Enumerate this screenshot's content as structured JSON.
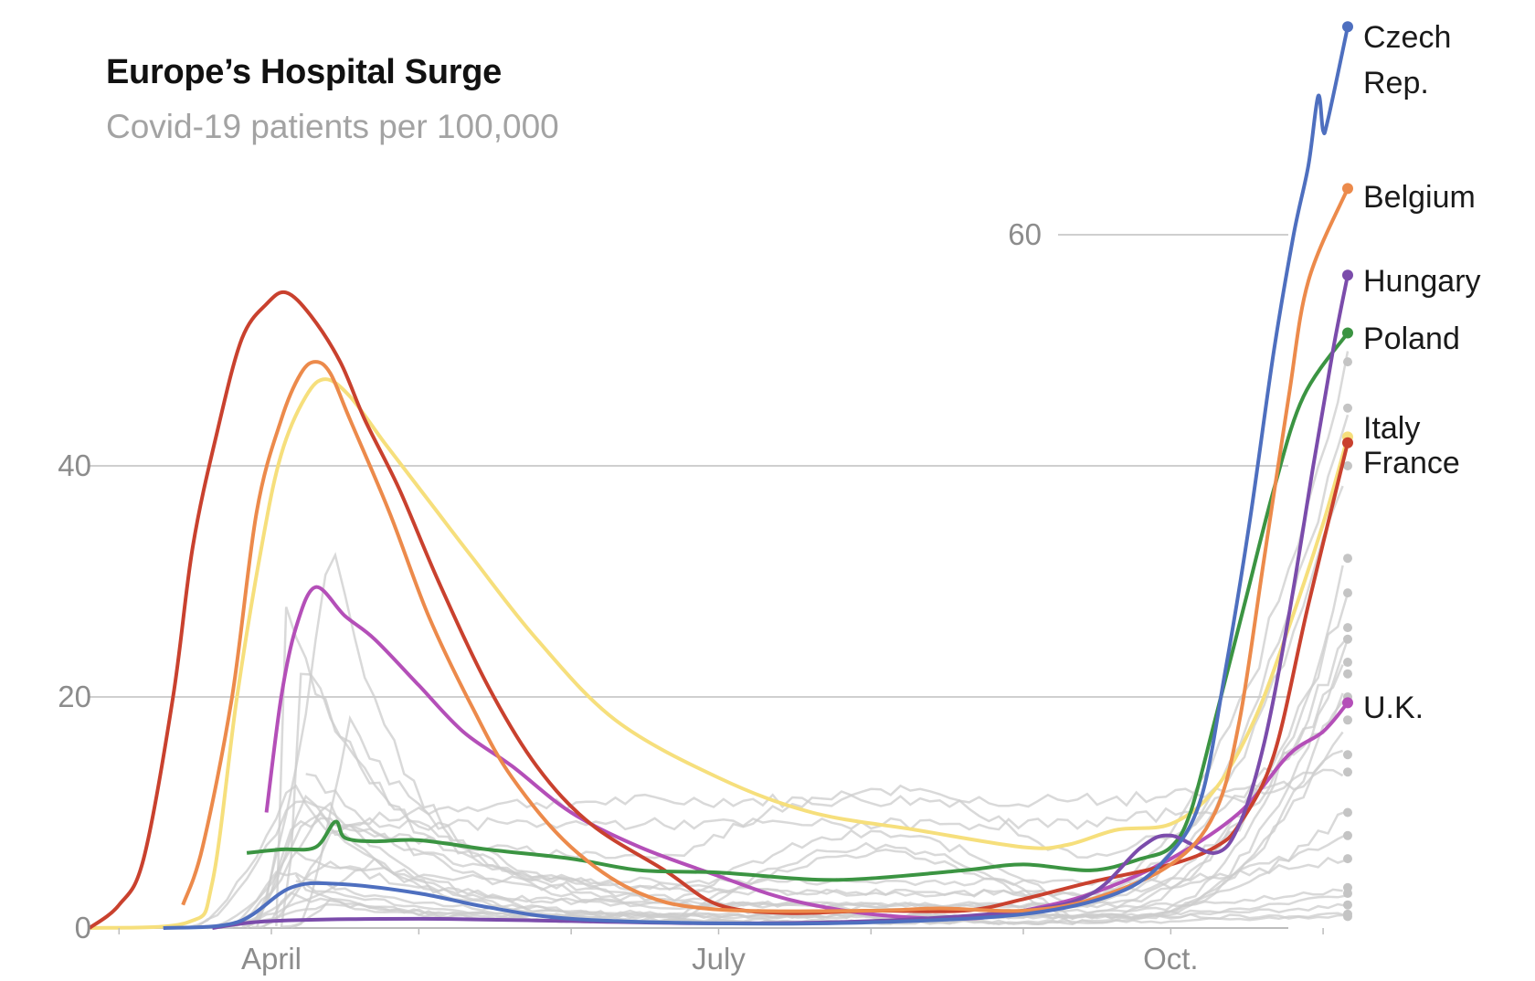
{
  "header": {
    "title": "Europe’s Hospital Surge",
    "subtitle": "Covid-19 patients per 100,000"
  },
  "chart_data": {
    "type": "line",
    "title": "Europe’s Hospital Surge",
    "subtitle": "Covid-19 patients per 100,000",
    "xlabel": "",
    "ylabel": "",
    "x_domain": [
      "2020-02-24",
      "2020-11-06"
    ],
    "ylim": [
      0,
      75
    ],
    "y_ticks": [
      0,
      20,
      40,
      60
    ],
    "x_ticks": [
      {
        "date": "2020-04-01",
        "label": "April"
      },
      {
        "date": "2020-07-01",
        "label": "July"
      },
      {
        "date": "2020-10-01",
        "label": "Oct."
      }
    ],
    "grid": true,
    "legend": "direct labels at line ends",
    "background_series_color": "#cccccc",
    "series": [
      {
        "name": "Czech Rep.",
        "label": [
          "Czech",
          "Rep."
        ],
        "color": "#4e6fbf",
        "points": [
          [
            "2020-03-10",
            0
          ],
          [
            "2020-03-25",
            0.5
          ],
          [
            "2020-04-05",
            3.5
          ],
          [
            "2020-04-15",
            3.8
          ],
          [
            "2020-05-01",
            3
          ],
          [
            "2020-05-15",
            1.8
          ],
          [
            "2020-06-01",
            0.8
          ],
          [
            "2020-07-01",
            0.4
          ],
          [
            "2020-08-01",
            0.5
          ],
          [
            "2020-09-01",
            1.2
          ],
          [
            "2020-09-20",
            3
          ],
          [
            "2020-09-30",
            6
          ],
          [
            "2020-10-07",
            11
          ],
          [
            "2020-10-12",
            22
          ],
          [
            "2020-10-17",
            35
          ],
          [
            "2020-10-22",
            50
          ],
          [
            "2020-10-26",
            60
          ],
          [
            "2020-10-29",
            66
          ],
          [
            "2020-10-31",
            72
          ],
          [
            "2020-11-01",
            69
          ],
          [
            "2020-11-02",
            70
          ],
          [
            "2020-11-06",
            78
          ]
        ]
      },
      {
        "name": "Belgium",
        "color": "#ec8a4b",
        "points": [
          [
            "2020-03-14",
            2
          ],
          [
            "2020-03-18",
            7
          ],
          [
            "2020-03-24",
            20
          ],
          [
            "2020-03-29",
            36
          ],
          [
            "2020-04-03",
            44
          ],
          [
            "2020-04-07",
            48
          ],
          [
            "2020-04-10",
            49
          ],
          [
            "2020-04-13",
            48
          ],
          [
            "2020-04-17",
            44
          ],
          [
            "2020-04-25",
            36
          ],
          [
            "2020-05-03",
            27
          ],
          [
            "2020-05-12",
            19
          ],
          [
            "2020-05-20",
            13
          ],
          [
            "2020-06-01",
            7
          ],
          [
            "2020-06-15",
            3
          ],
          [
            "2020-07-01",
            1.6
          ],
          [
            "2020-08-01",
            1.5
          ],
          [
            "2020-08-15",
            1.7
          ],
          [
            "2020-09-01",
            1.5
          ],
          [
            "2020-09-15",
            2.5
          ],
          [
            "2020-10-01",
            5.5
          ],
          [
            "2020-10-10",
            10
          ],
          [
            "2020-10-15",
            18
          ],
          [
            "2020-10-20",
            32
          ],
          [
            "2020-10-25",
            46
          ],
          [
            "2020-10-29",
            56
          ],
          [
            "2020-11-06",
            64
          ]
        ]
      },
      {
        "name": "Hungary",
        "color": "#7b4cab",
        "points": [
          [
            "2020-03-20",
            0
          ],
          [
            "2020-04-01",
            0.6
          ],
          [
            "2020-05-01",
            0.8
          ],
          [
            "2020-06-01",
            0.6
          ],
          [
            "2020-07-01",
            0.4
          ],
          [
            "2020-08-01",
            0.6
          ],
          [
            "2020-09-01",
            1.5
          ],
          [
            "2020-09-15",
            3
          ],
          [
            "2020-09-25",
            7
          ],
          [
            "2020-10-01",
            8
          ],
          [
            "2020-10-10",
            6.5
          ],
          [
            "2020-10-15",
            9
          ],
          [
            "2020-10-20",
            16
          ],
          [
            "2020-10-25",
            27
          ],
          [
            "2020-10-30",
            40
          ],
          [
            "2020-11-03",
            50
          ],
          [
            "2020-11-06",
            56.5
          ]
        ]
      },
      {
        "name": "Poland",
        "color": "#3b9442",
        "points": [
          [
            "2020-03-27",
            6.5
          ],
          [
            "2020-04-03",
            6.8
          ],
          [
            "2020-04-10",
            7
          ],
          [
            "2020-04-14",
            9.2
          ],
          [
            "2020-04-16",
            7.8
          ],
          [
            "2020-04-22",
            7.5
          ],
          [
            "2020-05-01",
            7.6
          ],
          [
            "2020-05-15",
            6.8
          ],
          [
            "2020-06-01",
            6
          ],
          [
            "2020-06-15",
            5
          ],
          [
            "2020-07-01",
            4.8
          ],
          [
            "2020-07-20",
            4.2
          ],
          [
            "2020-08-01",
            4.3
          ],
          [
            "2020-08-20",
            5
          ],
          [
            "2020-09-01",
            5.5
          ],
          [
            "2020-09-15",
            5
          ],
          [
            "2020-09-25",
            6
          ],
          [
            "2020-10-01",
            7
          ],
          [
            "2020-10-05",
            10
          ],
          [
            "2020-10-10",
            18
          ],
          [
            "2020-10-16",
            28
          ],
          [
            "2020-10-22",
            38
          ],
          [
            "2020-10-28",
            46
          ],
          [
            "2020-11-06",
            51.5
          ]
        ]
      },
      {
        "name": "Italy",
        "color": "#c9412e",
        "points": [
          [
            "2020-02-24",
            0
          ],
          [
            "2020-03-01",
            2
          ],
          [
            "2020-03-06",
            6
          ],
          [
            "2020-03-12",
            20
          ],
          [
            "2020-03-16",
            33
          ],
          [
            "2020-03-21",
            43
          ],
          [
            "2020-03-26",
            51
          ],
          [
            "2020-03-31",
            54
          ],
          [
            "2020-04-04",
            55
          ],
          [
            "2020-04-09",
            53
          ],
          [
            "2020-04-15",
            49
          ],
          [
            "2020-04-20",
            44
          ],
          [
            "2020-04-27",
            38
          ],
          [
            "2020-05-05",
            30
          ],
          [
            "2020-05-15",
            21
          ],
          [
            "2020-05-25",
            14
          ],
          [
            "2020-06-05",
            9
          ],
          [
            "2020-06-20",
            5
          ],
          [
            "2020-07-01",
            2
          ],
          [
            "2020-07-15",
            1.3
          ],
          [
            "2020-08-01",
            1.5
          ],
          [
            "2020-08-20",
            1.5
          ],
          [
            "2020-09-01",
            2.5
          ],
          [
            "2020-09-15",
            4
          ],
          [
            "2020-10-01",
            5.5
          ],
          [
            "2020-10-10",
            7
          ],
          [
            "2020-10-15",
            9
          ],
          [
            "2020-10-22",
            15
          ],
          [
            "2020-10-29",
            28
          ],
          [
            "2020-11-06",
            42
          ]
        ]
      },
      {
        "name": "France",
        "color": "#f6df7c",
        "points": [
          [
            "2020-02-24",
            0
          ],
          [
            "2020-03-15",
            0.5
          ],
          [
            "2020-03-20",
            4
          ],
          [
            "2020-03-25",
            20
          ],
          [
            "2020-03-30",
            33
          ],
          [
            "2020-04-03",
            41
          ],
          [
            "2020-04-08",
            46
          ],
          [
            "2020-04-12",
            47.5
          ],
          [
            "2020-04-17",
            46
          ],
          [
            "2020-04-24",
            42
          ],
          [
            "2020-05-03",
            37
          ],
          [
            "2020-05-12",
            32
          ],
          [
            "2020-05-25",
            25
          ],
          [
            "2020-06-10",
            18
          ],
          [
            "2020-07-01",
            13
          ],
          [
            "2020-07-20",
            10
          ],
          [
            "2020-08-10",
            8.5
          ],
          [
            "2020-09-01",
            7
          ],
          [
            "2020-09-10",
            7.2
          ],
          [
            "2020-09-20",
            8.5
          ],
          [
            "2020-10-01",
            9
          ],
          [
            "2020-10-10",
            12
          ],
          [
            "2020-10-18",
            18
          ],
          [
            "2020-10-25",
            26
          ],
          [
            "2020-11-01",
            35
          ],
          [
            "2020-11-06",
            42.5
          ]
        ]
      },
      {
        "name": "U.K.",
        "color": "#b44fb8",
        "points": [
          [
            "2020-03-31",
            10
          ],
          [
            "2020-04-03",
            20
          ],
          [
            "2020-04-06",
            26
          ],
          [
            "2020-04-10",
            29.5
          ],
          [
            "2020-04-16",
            27
          ],
          [
            "2020-04-22",
            25
          ],
          [
            "2020-05-01",
            21
          ],
          [
            "2020-05-10",
            17
          ],
          [
            "2020-05-20",
            14
          ],
          [
            "2020-06-01",
            10
          ],
          [
            "2020-06-15",
            7
          ],
          [
            "2020-07-01",
            4.5
          ],
          [
            "2020-07-15",
            2.5
          ],
          [
            "2020-08-01",
            1.2
          ],
          [
            "2020-08-20",
            0.8
          ],
          [
            "2020-09-01",
            1.5
          ],
          [
            "2020-09-15",
            3
          ],
          [
            "2020-10-01",
            6
          ],
          [
            "2020-10-15",
            10
          ],
          [
            "2020-10-25",
            15
          ],
          [
            "2020-11-01",
            17
          ],
          [
            "2020-11-06",
            19.5
          ]
        ]
      }
    ]
  }
}
